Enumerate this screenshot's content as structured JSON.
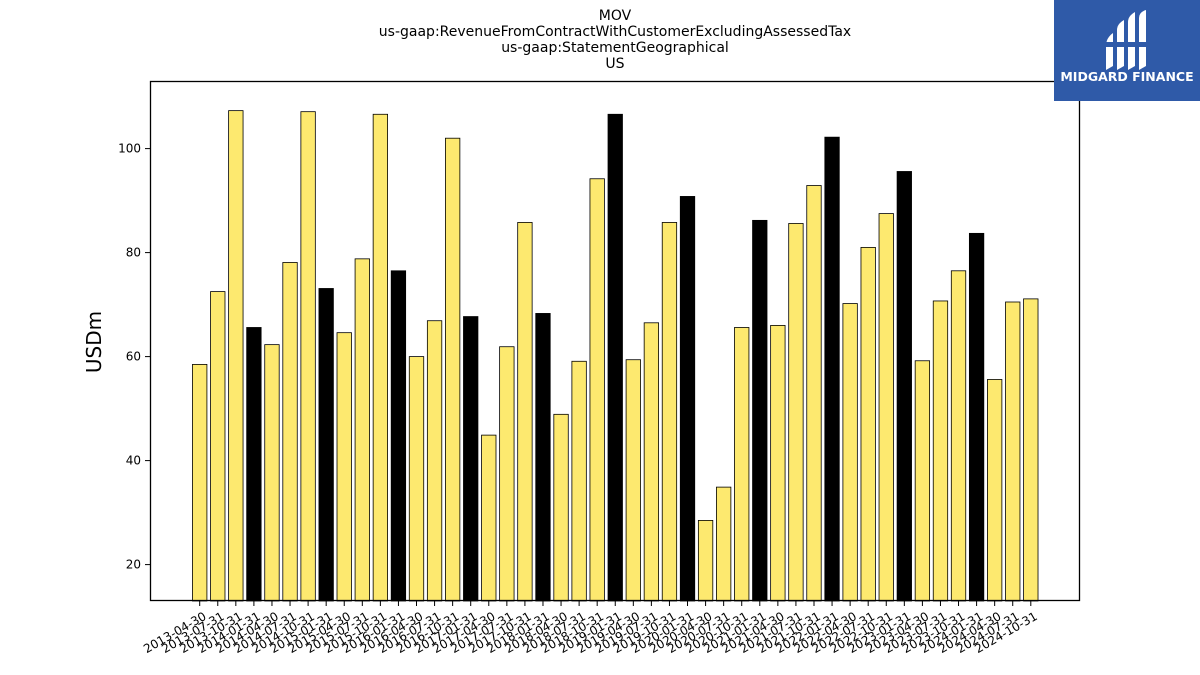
{
  "logo": {
    "text": "MIDGARD FINANCE",
    "background": "#2f5aa8",
    "foreground": "#ffffff"
  },
  "colors": {
    "bar_regular": "#fde96f",
    "bar_fiscal_q4": "#000000",
    "bar_edge": "#000000"
  },
  "chart_data": {
    "type": "bar",
    "title_lines": [
      "MOV",
      "us-gaap:RevenueFromContractWithCustomerExcludingAssessedTax",
      "us-gaap:StatementGeographical",
      "US"
    ],
    "xlabel": "",
    "ylabel": "USDm",
    "ylim": [
      13,
      113
    ],
    "yticks": [
      20,
      40,
      60,
      80,
      100
    ],
    "grid": false,
    "legend": "none",
    "categories": [
      "2013-04-30",
      "2013-07-31",
      "2013-10-31",
      "2014-01-31",
      "2014-04-30",
      "2014-07-31",
      "2014-10-31",
      "2015-01-31",
      "2015-04-30",
      "2015-07-31",
      "2015-10-31",
      "2016-01-31",
      "2016-04-30",
      "2016-07-31",
      "2016-10-31",
      "2017-01-31",
      "2017-04-30",
      "2017-07-31",
      "2017-10-31",
      "2018-01-31",
      "2018-04-30",
      "2018-07-31",
      "2018-10-31",
      "2019-01-31",
      "2019-04-30",
      "2019-07-31",
      "2019-10-31",
      "2020-01-31",
      "2020-04-30",
      "2020-07-31",
      "2020-10-31",
      "2021-01-31",
      "2021-04-30",
      "2021-07-31",
      "2021-10-31",
      "2022-01-31",
      "2022-04-30",
      "2022-07-31",
      "2022-10-31",
      "2023-01-31",
      "2023-04-30",
      "2023-07-31",
      "2023-10-31",
      "2024-01-31",
      "2024-04-30",
      "2024-07-31",
      "2024-10-31"
    ],
    "values": [
      58.5,
      72.5,
      107.3,
      65.6,
      62.3,
      78.1,
      107.1,
      73.1,
      64.6,
      78.8,
      106.6,
      76.5,
      60.0,
      66.9,
      102.0,
      67.7,
      44.9,
      61.9,
      85.8,
      68.3,
      48.9,
      59.1,
      94.2,
      106.6,
      59.4,
      66.5,
      85.8,
      90.8,
      28.5,
      34.9,
      65.6,
      86.2,
      66.0,
      85.6,
      92.9,
      102.2,
      70.2,
      81.0,
      87.5,
      95.6,
      59.2,
      70.7,
      76.5,
      83.7,
      55.6,
      70.5,
      71.1
    ],
    "highlight": [
      false,
      false,
      false,
      true,
      false,
      false,
      false,
      true,
      false,
      false,
      false,
      true,
      false,
      false,
      false,
      true,
      false,
      false,
      false,
      true,
      false,
      false,
      false,
      true,
      false,
      false,
      false,
      true,
      false,
      false,
      false,
      true,
      false,
      false,
      false,
      true,
      false,
      false,
      false,
      true,
      false,
      false,
      false,
      true,
      false,
      false,
      false
    ]
  }
}
